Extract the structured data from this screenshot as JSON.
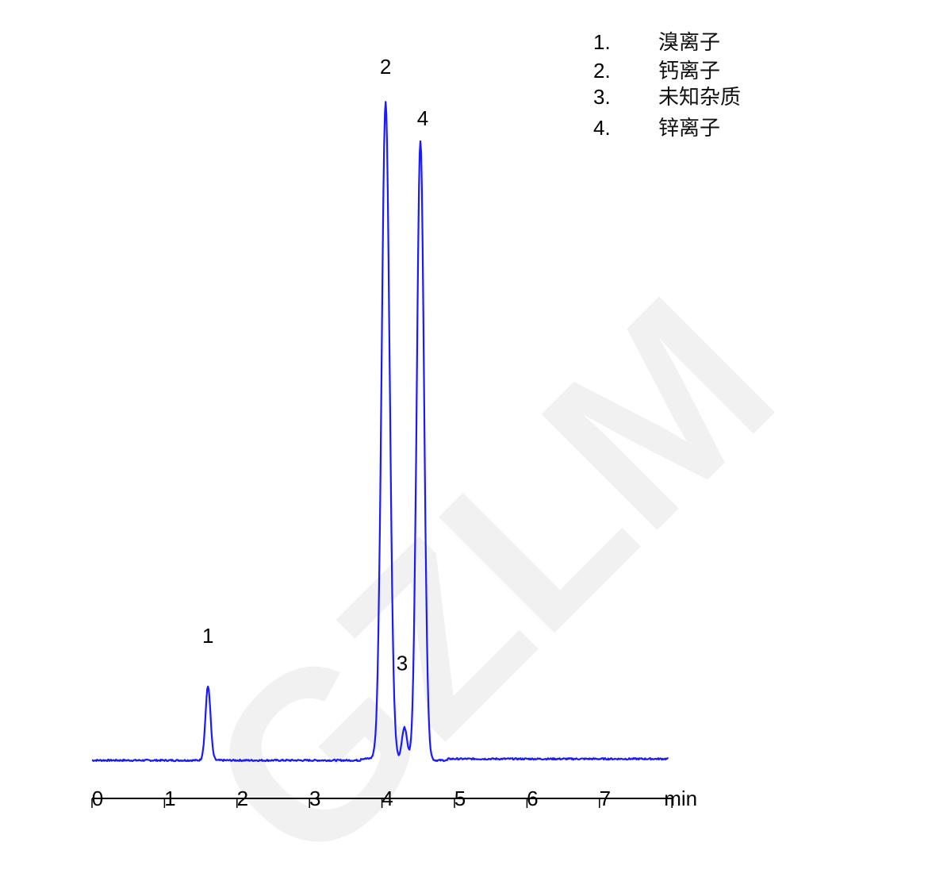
{
  "chart_data": {
    "type": "line",
    "title": "",
    "xlabel": "min",
    "ylabel": "",
    "xlim": [
      0,
      8
    ],
    "x_ticks": [
      "0",
      "1",
      "2",
      "3",
      "4",
      "5",
      "6",
      "7"
    ],
    "y_units": "relative intensity (tallest peak = 100), no y axis shown",
    "grid": false,
    "line_color": "#1a1aff",
    "peaks": [
      {
        "label": "1",
        "retention_time": 1.6,
        "height": 11.2,
        "width_sigma": 0.035
      },
      {
        "label": "2",
        "retention_time": 4.05,
        "height": 100,
        "width_sigma": 0.055
      },
      {
        "label": "3",
        "retention_time": 4.31,
        "height": 5.0,
        "width_sigma": 0.035
      },
      {
        "label": "4",
        "retention_time": 4.53,
        "height": 94,
        "width_sigma": 0.05
      }
    ],
    "legend": [
      {
        "number": "1.",
        "name": "溴离子"
      },
      {
        "number": "2.",
        "name": "钙离子"
      },
      {
        "number": "3.",
        "name": "未知杂质"
      },
      {
        "number": "4.",
        "name": "锌离子"
      }
    ],
    "legend_position": "top-right"
  },
  "watermark": "GZLM"
}
